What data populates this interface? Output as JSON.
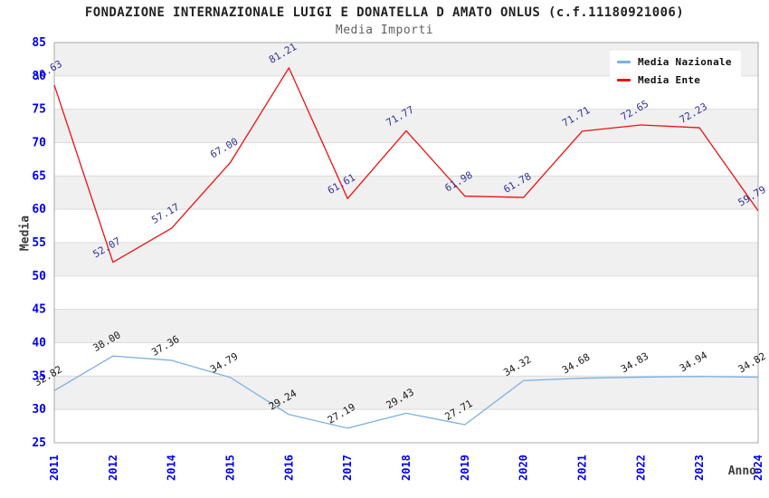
{
  "header": {
    "title": "FONDAZIONE INTERNAZIONALE LUIGI E DONATELLA D AMATO ONLUS (c.f.11180921006)",
    "subtitle": "Media Importi"
  },
  "chart_data": {
    "type": "line",
    "title": "FONDAZIONE INTERNAZIONALE LUIGI E DONATELLA D AMATO ONLUS (c.f.11180921006)",
    "subtitle": "Media Importi",
    "xlabel": "Anno",
    "ylabel": "Media",
    "categories": [
      "2011",
      "2012",
      "2014",
      "2015",
      "2016",
      "2017",
      "2018",
      "2019",
      "2020",
      "2021",
      "2022",
      "2023",
      "2024"
    ],
    "series": [
      {
        "name": "Media Nazionale",
        "color": "#7cb0e0",
        "label_color": "#1a1a1a",
        "values": [
          32.82,
          38.0,
          37.36,
          34.79,
          29.24,
          27.19,
          29.43,
          27.71,
          34.32,
          34.68,
          34.83,
          34.94,
          34.82
        ]
      },
      {
        "name": "Media Ente",
        "color": "#ee1111",
        "label_color": "#333399",
        "values": [
          78.63,
          52.07,
          57.17,
          67.0,
          81.21,
          61.61,
          71.77,
          61.98,
          61.78,
          71.71,
          72.65,
          72.23,
          59.79
        ]
      }
    ],
    "ylim": [
      25,
      85
    ],
    "ytick_step": 5,
    "grid": true,
    "band_color": "#f0f0f0",
    "gridline_color": "#dcdcdc",
    "border_color": "#aaaaaa",
    "tick_label_color": "#0000ee",
    "legend_position": "top-right"
  }
}
